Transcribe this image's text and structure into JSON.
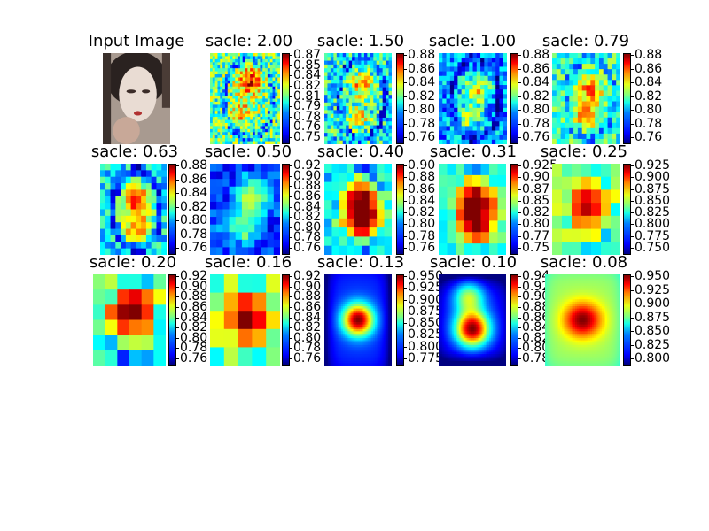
{
  "figure": {
    "panels": [
      {
        "title": "Input Image",
        "kind": "image"
      },
      {
        "title": "sacle: 2.00",
        "kind": "heatmap",
        "ticks": [
          "0.87",
          "0.85",
          "0.84",
          "0.82",
          "0.81",
          "0.79",
          "0.78",
          "0.76",
          "0.75"
        ],
        "range": [
          0.745,
          0.875
        ],
        "cols": 28,
        "rows": 30,
        "blobs": [
          [
            0.55,
            0.35,
            0.03,
            0.5
          ],
          [
            0.45,
            0.65,
            0.03,
            0.4
          ],
          [
            0.6,
            0.25,
            0.02,
            0.5
          ]
        ],
        "base": 0.805,
        "noise": 0.05,
        "edge": 0.02
      },
      {
        "title": "sacle: 1.50",
        "kind": "heatmap",
        "ticks": [
          "0.88",
          "0.86",
          "0.84",
          "0.82",
          "0.80",
          "0.78",
          "0.76"
        ],
        "range": [
          0.755,
          0.885
        ],
        "cols": 22,
        "rows": 24,
        "blobs": [
          [
            0.55,
            0.35,
            0.03,
            0.5
          ],
          [
            0.5,
            0.7,
            0.03,
            0.4
          ]
        ],
        "base": 0.805,
        "noise": 0.05,
        "edge": 0.02
      },
      {
        "title": "sacle: 1.00",
        "kind": "heatmap",
        "ticks": [
          "0.88",
          "0.86",
          "0.84",
          "0.82",
          "0.80",
          "0.78",
          "0.76"
        ],
        "range": [
          0.755,
          0.885
        ],
        "cols": 18,
        "rows": 20,
        "blobs": [
          [
            0.55,
            0.4,
            0.04,
            0.5
          ],
          [
            0.45,
            0.7,
            0.03,
            0.4
          ]
        ],
        "base": 0.79,
        "noise": 0.04,
        "edge": 0.02
      },
      {
        "title": "sacle: 0.79",
        "kind": "heatmap",
        "ticks": [
          "0.88",
          "0.86",
          "0.84",
          "0.82",
          "0.80",
          "0.78",
          "0.76"
        ],
        "range": [
          0.745,
          0.885
        ],
        "cols": 16,
        "rows": 17,
        "blobs": [
          [
            0.55,
            0.4,
            0.04,
            0.6
          ],
          [
            0.5,
            0.7,
            0.03,
            0.5
          ]
        ],
        "base": 0.805,
        "noise": 0.04,
        "edge": 0.02
      },
      {
        "title": "sacle: 0.63",
        "kind": "heatmap",
        "ticks": [
          "0.88",
          "0.86",
          "0.84",
          "0.82",
          "0.80",
          "0.78",
          "0.76"
        ],
        "range": [
          0.755,
          0.885
        ],
        "cols": 13,
        "rows": 14,
        "blobs": [
          [
            0.55,
            0.4,
            0.05,
            0.7
          ],
          [
            0.55,
            0.7,
            0.05,
            0.6
          ]
        ],
        "base": 0.8,
        "noise": 0.035,
        "edge": 0.03
      },
      {
        "title": "sacle: 0.50",
        "kind": "heatmap",
        "ticks": [
          "0.92",
          "0.90",
          "0.88",
          "0.86",
          "0.84",
          "0.82",
          "0.80",
          "0.78",
          "0.76"
        ],
        "range": [
          0.755,
          0.925
        ],
        "cols": 11,
        "rows": 12,
        "blobs": [
          [
            0.6,
            0.35,
            0.06,
            0.5
          ],
          [
            0.45,
            0.7,
            0.06,
            0.4
          ]
        ],
        "base": 0.785,
        "noise": 0.03,
        "edge": 0.01
      },
      {
        "title": "sacle: 0.40",
        "kind": "heatmap",
        "ticks": [
          "0.90",
          "0.88",
          "0.86",
          "0.84",
          "0.82",
          "0.80",
          "0.78",
          "0.76"
        ],
        "range": [
          0.755,
          0.905
        ],
        "cols": 9,
        "rows": 10,
        "blobs": [
          [
            0.55,
            0.4,
            0.08,
            0.9
          ],
          [
            0.55,
            0.65,
            0.08,
            0.8
          ]
        ],
        "base": 0.805,
        "noise": 0.03,
        "edge": 0.02
      },
      {
        "title": "sacle: 0.31",
        "kind": "heatmap",
        "ticks": [
          "0.925",
          "0.90",
          "0.87",
          "0.85",
          "0.82",
          "0.80",
          "0.77",
          "0.75"
        ],
        "range": [
          0.745,
          0.93
        ],
        "cols": 8,
        "rows": 8,
        "blobs": [
          [
            0.55,
            0.4,
            0.1,
            0.9
          ],
          [
            0.55,
            0.7,
            0.1,
            0.8
          ]
        ],
        "base": 0.81,
        "noise": 0.03,
        "edge": 0.02
      },
      {
        "title": "sacle: 0.25",
        "kind": "heatmap",
        "ticks": [
          "0.925",
          "0.900",
          "0.875",
          "0.850",
          "0.825",
          "0.800",
          "0.775",
          "0.750"
        ],
        "range": [
          0.74,
          0.93
        ],
        "cols": 7,
        "rows": 7,
        "blobs": [
          [
            0.5,
            0.45,
            0.12,
            0.8
          ]
        ],
        "base": 0.83,
        "noise": 0.03,
        "edge": 0.03
      },
      {
        "title": "sacle: 0.20",
        "kind": "heatmap",
        "ticks": [
          "0.92",
          "0.90",
          "0.88",
          "0.86",
          "0.84",
          "0.82",
          "0.80",
          "0.78",
          "0.76"
        ],
        "range": [
          0.755,
          0.925
        ],
        "cols": 6,
        "rows": 6,
        "blobs": [
          [
            0.55,
            0.4,
            0.14,
            1.0
          ]
        ],
        "base": 0.82,
        "noise": 0.03,
        "edge": 0.03
      },
      {
        "title": "sacle: 0.16",
        "kind": "heatmap",
        "ticks": [
          "0.92",
          "0.90",
          "0.88",
          "0.86",
          "0.84",
          "0.82",
          "0.80",
          "0.78",
          "0.76"
        ],
        "range": [
          0.755,
          0.925
        ],
        "cols": 5,
        "rows": 5,
        "blobs": [
          [
            0.55,
            0.45,
            0.16,
            1.0
          ]
        ],
        "base": 0.83,
        "noise": 0.03,
        "edge": 0.02
      },
      {
        "title": "sacle: 0.13",
        "kind": "heatmap",
        "ticks": [
          "0.950",
          "0.925",
          "0.900",
          "0.875",
          "0.850",
          "0.825",
          "0.800",
          "0.775"
        ],
        "range": [
          0.765,
          0.96
        ],
        "cols": 40,
        "rows": 40,
        "smooth": true,
        "blobs": [
          [
            0.5,
            0.5,
            0.05,
            1.0
          ]
        ],
        "base": 0.8,
        "noise": 0.0,
        "edge": 0.0
      },
      {
        "title": "sacle: 0.10",
        "kind": "heatmap",
        "ticks": [
          "0.94",
          "0.92",
          "0.90",
          "0.88",
          "0.86",
          "0.84",
          "0.82",
          "0.80",
          "0.78"
        ],
        "range": [
          0.775,
          0.945
        ],
        "cols": 40,
        "rows": 40,
        "smooth": true,
        "blobs": [
          [
            0.5,
            0.6,
            0.06,
            1.0
          ],
          [
            0.45,
            0.25,
            0.05,
            0.5
          ]
        ],
        "base": 0.8,
        "noise": 0.0,
        "edge": 0.0
      },
      {
        "title": "sacle: 0.08",
        "kind": "heatmap",
        "ticks": [
          "0.950",
          "0.925",
          "0.900",
          "0.875",
          "0.850",
          "0.825",
          "0.800"
        ],
        "range": [
          0.785,
          0.96
        ],
        "cols": 40,
        "rows": 40,
        "smooth": true,
        "blobs": [
          [
            0.5,
            0.5,
            0.06,
            1.0
          ]
        ],
        "base": 0.88,
        "noise": 0.0,
        "edge": 0.0
      }
    ]
  },
  "chart_data": [
    {
      "type": "image",
      "title": "Input Image"
    },
    {
      "type": "heatmap",
      "title": "sacle: 2.00",
      "colorbar_ticks": [
        "0.87",
        "0.85",
        "0.84",
        "0.82",
        "0.81",
        "0.79",
        "0.78",
        "0.76",
        "0.75"
      ],
      "colormap": "jet"
    },
    {
      "type": "heatmap",
      "title": "sacle: 1.50",
      "colorbar_ticks": [
        "0.88",
        "0.86",
        "0.84",
        "0.82",
        "0.80",
        "0.78",
        "0.76"
      ],
      "colormap": "jet"
    },
    {
      "type": "heatmap",
      "title": "sacle: 1.00",
      "colorbar_ticks": [
        "0.88",
        "0.86",
        "0.84",
        "0.82",
        "0.80",
        "0.78",
        "0.76"
      ],
      "colormap": "jet"
    },
    {
      "type": "heatmap",
      "title": "sacle: 0.79",
      "colorbar_ticks": [
        "0.88",
        "0.86",
        "0.84",
        "0.82",
        "0.80",
        "0.78",
        "0.76"
      ],
      "colormap": "jet"
    },
    {
      "type": "heatmap",
      "title": "sacle: 0.63",
      "colorbar_ticks": [
        "0.88",
        "0.86",
        "0.84",
        "0.82",
        "0.80",
        "0.78",
        "0.76"
      ],
      "colormap": "jet"
    },
    {
      "type": "heatmap",
      "title": "sacle: 0.50",
      "colorbar_ticks": [
        "0.92",
        "0.90",
        "0.88",
        "0.86",
        "0.84",
        "0.82",
        "0.80",
        "0.78",
        "0.76"
      ],
      "colormap": "jet"
    },
    {
      "type": "heatmap",
      "title": "sacle: 0.40",
      "colorbar_ticks": [
        "0.90",
        "0.88",
        "0.86",
        "0.84",
        "0.82",
        "0.80",
        "0.78",
        "0.76"
      ],
      "colormap": "jet"
    },
    {
      "type": "heatmap",
      "title": "sacle: 0.31",
      "colorbar_ticks": [
        "0.925",
        "0.90",
        "0.87",
        "0.85",
        "0.82",
        "0.80",
        "0.77",
        "0.75"
      ],
      "colormap": "jet"
    },
    {
      "type": "heatmap",
      "title": "sacle: 0.25",
      "colorbar_ticks": [
        "0.925",
        "0.900",
        "0.875",
        "0.850",
        "0.825",
        "0.800",
        "0.775",
        "0.750"
      ],
      "colormap": "jet"
    },
    {
      "type": "heatmap",
      "title": "sacle: 0.20",
      "colorbar_ticks": [
        "0.92",
        "0.90",
        "0.88",
        "0.86",
        "0.84",
        "0.82",
        "0.80",
        "0.78",
        "0.76"
      ],
      "colormap": "jet"
    },
    {
      "type": "heatmap",
      "title": "sacle: 0.16",
      "colorbar_ticks": [
        "0.92",
        "0.90",
        "0.88",
        "0.86",
        "0.84",
        "0.82",
        "0.80",
        "0.78",
        "0.76"
      ],
      "colormap": "jet"
    },
    {
      "type": "heatmap",
      "title": "sacle: 0.13",
      "colorbar_ticks": [
        "0.950",
        "0.925",
        "0.900",
        "0.875",
        "0.850",
        "0.825",
        "0.800",
        "0.775"
      ],
      "colormap": "jet"
    },
    {
      "type": "heatmap",
      "title": "sacle: 0.10",
      "colorbar_ticks": [
        "0.94",
        "0.92",
        "0.90",
        "0.88",
        "0.86",
        "0.84",
        "0.82",
        "0.80",
        "0.78"
      ],
      "colormap": "jet"
    },
    {
      "type": "heatmap",
      "title": "sacle: 0.08",
      "colorbar_ticks": [
        "0.950",
        "0.925",
        "0.900",
        "0.875",
        "0.850",
        "0.825",
        "0.800"
      ],
      "colormap": "jet"
    }
  ]
}
